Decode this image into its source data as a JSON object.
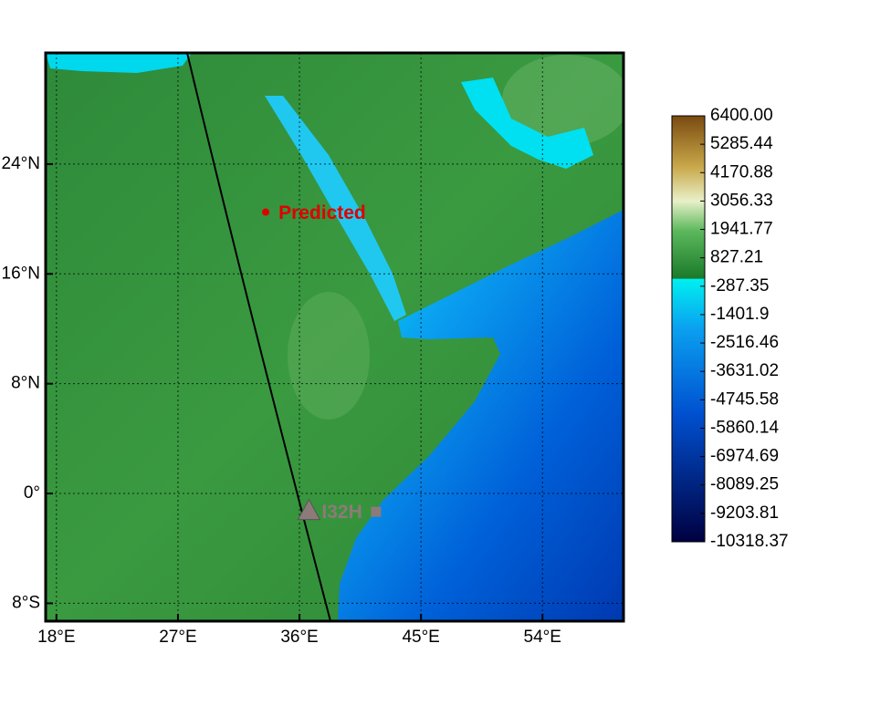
{
  "map": {
    "lonlim": [
      17.2,
      60.0
    ],
    "latlim": [
      -9.3,
      32.1
    ],
    "lon_ticks": [
      {
        "value": 18,
        "label": "18°E"
      },
      {
        "value": 27,
        "label": "27°E"
      },
      {
        "value": 36,
        "label": "36°E"
      },
      {
        "value": 45,
        "label": "45°E"
      },
      {
        "value": 54,
        "label": "54°E"
      }
    ],
    "lat_ticks": [
      {
        "value": 24,
        "label": "24°N"
      },
      {
        "value": 16,
        "label": "16°N"
      },
      {
        "value": 8,
        "label": "8°N"
      },
      {
        "value": 0,
        "label": "0°"
      },
      {
        "value": -8,
        "label": "8°S"
      }
    ],
    "markers": [
      {
        "label": "Predicted",
        "lon": 33.5,
        "lat": 20.5,
        "color": "#e00000"
      },
      {
        "label": "I32H",
        "lon": 36.7,
        "lat": -1.3,
        "color": "#8c7b78"
      }
    ],
    "colorbar": {
      "lim": [
        -10318.37,
        6400
      ],
      "ticks": [
        {
          "value": 6400,
          "label": "6400.00"
        },
        5285.44,
        4170.88,
        3056.33,
        1941.77,
        827.21,
        -287.35,
        -1401.9,
        -2516.46,
        -3631.02,
        -4745.58,
        -5860.14,
        -6974.69,
        -8089.25,
        -9203.81,
        -10318.37
      ]
    }
  }
}
